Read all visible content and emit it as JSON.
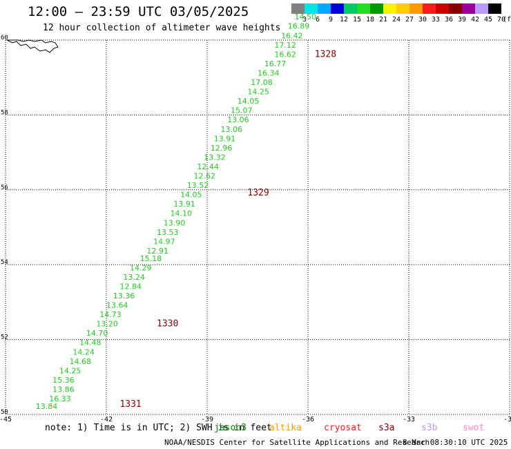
{
  "header": {
    "title": "12:00 – 23:59 UTC 03/05/2025",
    "subtitle": "12 hour collection of altimeter wave heights"
  },
  "legend": {
    "unit": "(ft)",
    "bins": [
      {
        "label": "3",
        "color": "#7f7f7f"
      },
      {
        "label": "6",
        "color": "#00e5e5"
      },
      {
        "label": "9",
        "color": "#00aaff"
      },
      {
        "label": "12",
        "color": "#0000dd"
      },
      {
        "label": "15",
        "color": "#00cc66"
      },
      {
        "label": "18",
        "color": "#22dd22"
      },
      {
        "label": "21",
        "color": "#009900"
      },
      {
        "label": "24",
        "color": "#f5f500"
      },
      {
        "label": "27",
        "color": "#ffcc00"
      },
      {
        "label": "30",
        "color": "#ff9900"
      },
      {
        "label": "33",
        "color": "#ff1a1a"
      },
      {
        "label": "36",
        "color": "#cc0000"
      },
      {
        "label": "39",
        "color": "#880000"
      },
      {
        "label": "42",
        "color": "#990099"
      },
      {
        "label": "45",
        "color": "#bb99ff"
      },
      {
        "label": "70",
        "color": "#000000"
      }
    ]
  },
  "map": {
    "lon_range": [
      -45,
      -30
    ],
    "lat_range": [
      50,
      60
    ],
    "lon_ticks": [
      "-45",
      "-42",
      "-39",
      "-36",
      "-33",
      "-30"
    ],
    "lat_ticks": [
      "60",
      "58",
      "56",
      "54",
      "52",
      "50"
    ]
  },
  "tracks": [
    {
      "id": "1331",
      "label_color": "#880000",
      "label_position": {
        "lon": -41.6,
        "lat": 50.2
      },
      "readings": [
        {
          "v": "13.84",
          "lon": -44.1,
          "lat": 50.15,
          "color": "#22cc22"
        },
        {
          "v": "16.33",
          "lon": -43.7,
          "lat": 50.35,
          "color": "#22cc22"
        },
        {
          "v": "13.86",
          "lon": -43.6,
          "lat": 50.6,
          "color": "#22cc22"
        },
        {
          "v": "15.36",
          "lon": -43.6,
          "lat": 50.85,
          "color": "#22cc22"
        },
        {
          "v": "14.25",
          "lon": -43.4,
          "lat": 51.1,
          "color": "#22cc22"
        },
        {
          "v": "14.68",
          "lon": -43.1,
          "lat": 51.35,
          "color": "#22cc22"
        },
        {
          "v": "14.24",
          "lon": -43.0,
          "lat": 51.6,
          "color": "#22cc22"
        },
        {
          "v": "14.48",
          "lon": -42.8,
          "lat": 51.85,
          "color": "#22cc22"
        },
        {
          "v": "14.70",
          "lon": -42.6,
          "lat": 52.1,
          "color": "#22cc22"
        }
      ]
    },
    {
      "id": "1330",
      "label_color": "#880000",
      "label_position": {
        "lon": -40.5,
        "lat": 52.35
      },
      "readings": [
        {
          "v": "13.20",
          "lon": -42.3,
          "lat": 52.35,
          "color": "#22cc22"
        },
        {
          "v": "14.73",
          "lon": -42.2,
          "lat": 52.6,
          "color": "#22cc22"
        },
        {
          "v": "13.64",
          "lon": -42.0,
          "lat": 52.85,
          "color": "#22cc22"
        },
        {
          "v": "13.36",
          "lon": -41.8,
          "lat": 53.1,
          "color": "#22cc22"
        },
        {
          "v": "12.84",
          "lon": -41.6,
          "lat": 53.35,
          "color": "#22cc22"
        },
        {
          "v": "13.24",
          "lon": -41.5,
          "lat": 53.6,
          "color": "#22cc22"
        },
        {
          "v": "14.29",
          "lon": -41.3,
          "lat": 53.85,
          "color": "#22cc22"
        },
        {
          "v": "15.18",
          "lon": -41.0,
          "lat": 54.1,
          "color": "#22cc22"
        },
        {
          "v": "12.91",
          "lon": -40.8,
          "lat": 54.3,
          "color": "#22cc22"
        },
        {
          "v": "14.97",
          "lon": -40.6,
          "lat": 54.55,
          "color": "#22cc22"
        },
        {
          "v": "13.53",
          "lon": -40.5,
          "lat": 54.8,
          "color": "#22cc22"
        },
        {
          "v": "13.90",
          "lon": -40.3,
          "lat": 55.05,
          "color": "#22cc22"
        },
        {
          "v": "14.10",
          "lon": -40.1,
          "lat": 55.3,
          "color": "#22cc22"
        },
        {
          "v": "13.91",
          "lon": -40.0,
          "lat": 55.55,
          "color": "#22cc22"
        },
        {
          "v": "14.05",
          "lon": -39.8,
          "lat": 55.8,
          "color": "#22cc22"
        }
      ]
    },
    {
      "id": "1329",
      "label_color": "#880000",
      "label_position": {
        "lon": -37.8,
        "lat": 55.85
      },
      "readings": [
        {
          "v": "13.52",
          "lon": -39.6,
          "lat": 56.05,
          "color": "#22cc22"
        },
        {
          "v": "12.62",
          "lon": -39.4,
          "lat": 56.3,
          "color": "#22cc22"
        },
        {
          "v": "12.44",
          "lon": -39.3,
          "lat": 56.55,
          "color": "#22cc22"
        },
        {
          "v": "13.32",
          "lon": -39.1,
          "lat": 56.8,
          "color": "#22cc22"
        },
        {
          "v": "12.96",
          "lon": -38.9,
          "lat": 57.05,
          "color": "#22cc22"
        },
        {
          "v": "13.91",
          "lon": -38.8,
          "lat": 57.3,
          "color": "#22cc22"
        },
        {
          "v": "13.06",
          "lon": -38.6,
          "lat": 57.55,
          "color": "#22cc22"
        },
        {
          "v": "13.06",
          "lon": -38.4,
          "lat": 57.8,
          "color": "#22cc22"
        },
        {
          "v": "15.07",
          "lon": -38.3,
          "lat": 58.05,
          "color": "#22cc22"
        },
        {
          "v": "14.05",
          "lon": -38.1,
          "lat": 58.3,
          "color": "#22cc22"
        },
        {
          "v": "14.25",
          "lon": -37.8,
          "lat": 58.55,
          "color": "#22cc22"
        },
        {
          "v": "17.08",
          "lon": -37.7,
          "lat": 58.8,
          "color": "#22cc22"
        },
        {
          "v": "16.34",
          "lon": -37.5,
          "lat": 59.05,
          "color": "#22cc22"
        },
        {
          "v": "16.77",
          "lon": -37.3,
          "lat": 59.3,
          "color": "#22cc22"
        }
      ]
    },
    {
      "id": "1328",
      "label_color": "#880000",
      "label_position": {
        "lon": -35.8,
        "lat": 59.55
      },
      "readings": [
        {
          "v": "16.62",
          "lon": -37.0,
          "lat": 59.55,
          "color": "#22cc22"
        },
        {
          "v": "17.12",
          "lon": -37.0,
          "lat": 59.8,
          "color": "#22cc22"
        },
        {
          "v": "16.42",
          "lon": -36.8,
          "lat": 60.05,
          "color": "#22cc22"
        },
        {
          "v": "16.89",
          "lon": -36.6,
          "lat": 60.3,
          "color": "#22cc22"
        },
        {
          "v": "14.50",
          "lon": -36.4,
          "lat": 60.55,
          "color": "#22cc22"
        }
      ]
    }
  ],
  "bottom": {
    "note": "note: 1) Time is in UTC; 2) SWH is in feet",
    "satellites": [
      {
        "name": "jason3",
        "color": "#008800"
      },
      {
        "name": "altika",
        "color": "#ff9900"
      },
      {
        "name": "cryosat",
        "color": "#ff1a1a"
      },
      {
        "name": "s3a",
        "color": "#880000"
      },
      {
        "name": "s3b",
        "color": "#bb99ff"
      },
      {
        "name": "swot",
        "color": "#ff88cc"
      }
    ]
  },
  "footer": {
    "credit": "NOAA/NESDIS Center for Satellite Applications and Research",
    "timestamp": "8 Mar 08:30:10 UTC 2025"
  }
}
